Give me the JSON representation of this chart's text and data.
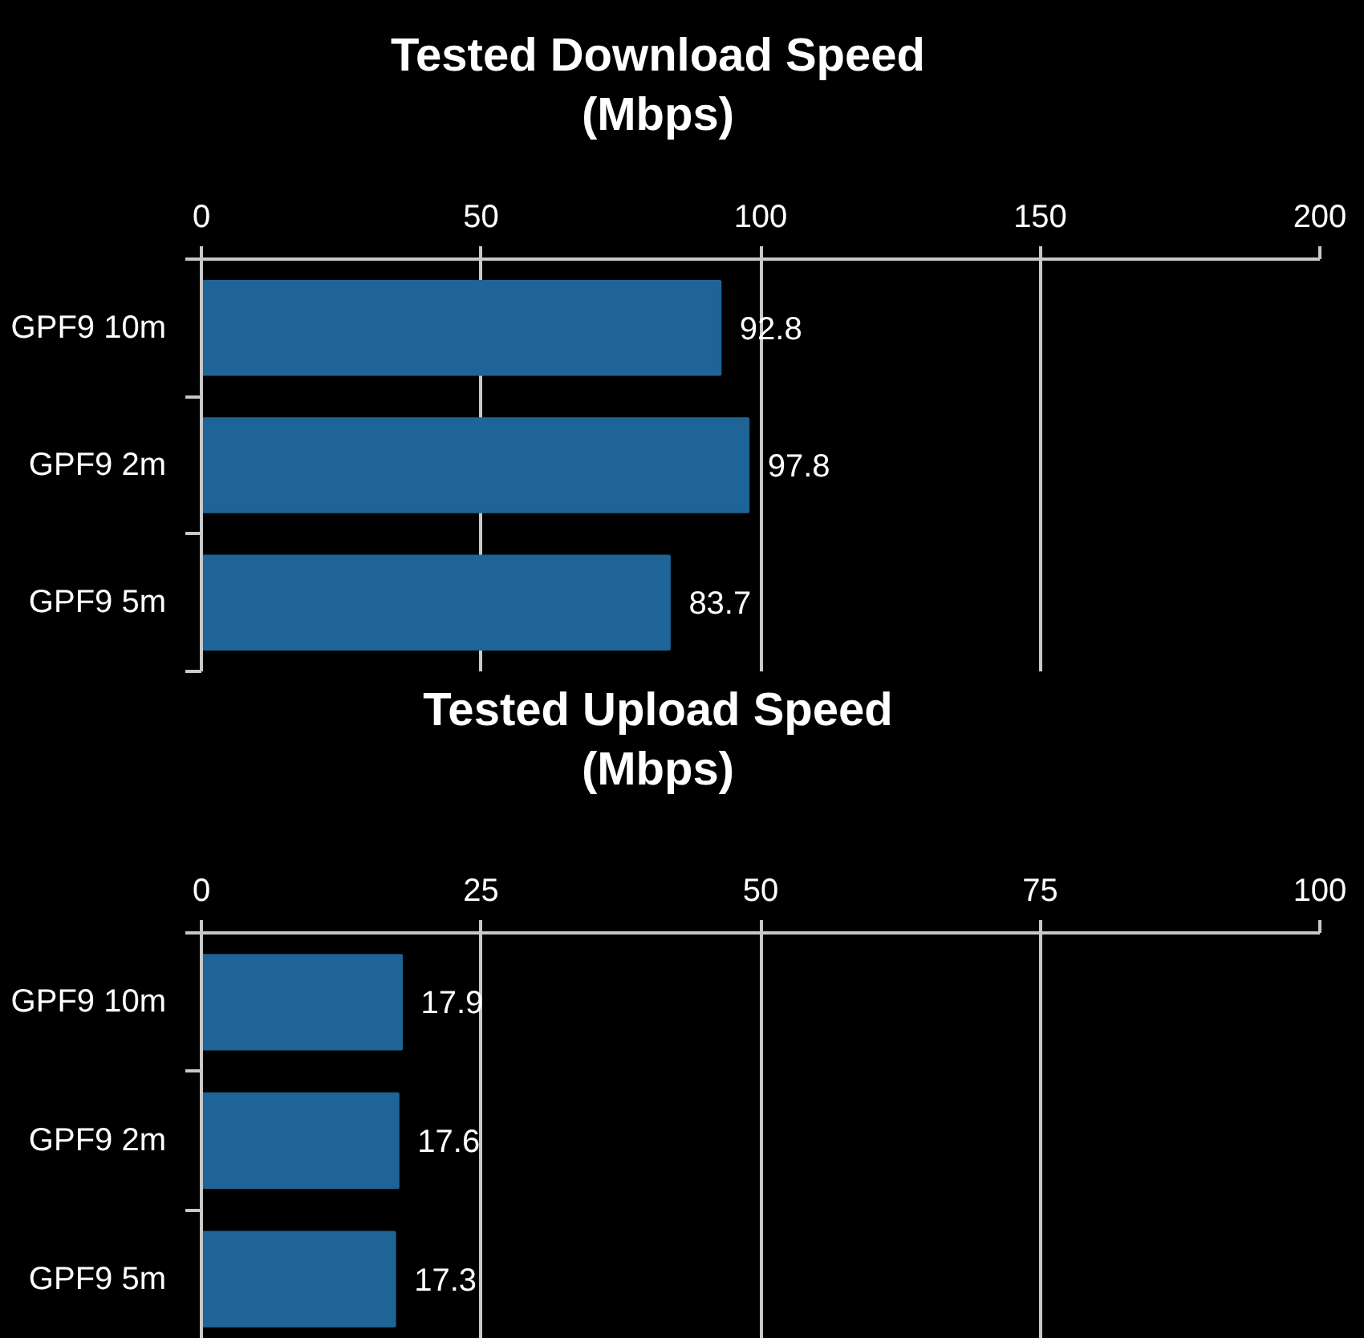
{
  "chart_data": [
    {
      "type": "bar",
      "orientation": "horizontal",
      "title": "Tested Download Speed\n(Mbps)",
      "categories": [
        "GPF9 10m",
        "GPF9 2m",
        "GPF9 5m"
      ],
      "values": [
        92.8,
        97.8,
        83.7
      ],
      "color": "#1e6496",
      "xlim": [
        0,
        200
      ],
      "xticks": [
        0,
        50,
        100,
        150,
        200
      ],
      "grid": "x",
      "data_labels": true
    },
    {
      "type": "bar",
      "orientation": "horizontal",
      "title": "Tested Upload Speed\n(Mbps)",
      "categories": [
        "GPF9 10m",
        "GPF9 2m",
        "GPF9 5m"
      ],
      "values": [
        17.9,
        17.6,
        17.3
      ],
      "color": "#1e6496",
      "xlim": [
        0,
        100
      ],
      "xticks": [
        0,
        25,
        50,
        75,
        100
      ],
      "grid": "x",
      "data_labels": true
    }
  ]
}
